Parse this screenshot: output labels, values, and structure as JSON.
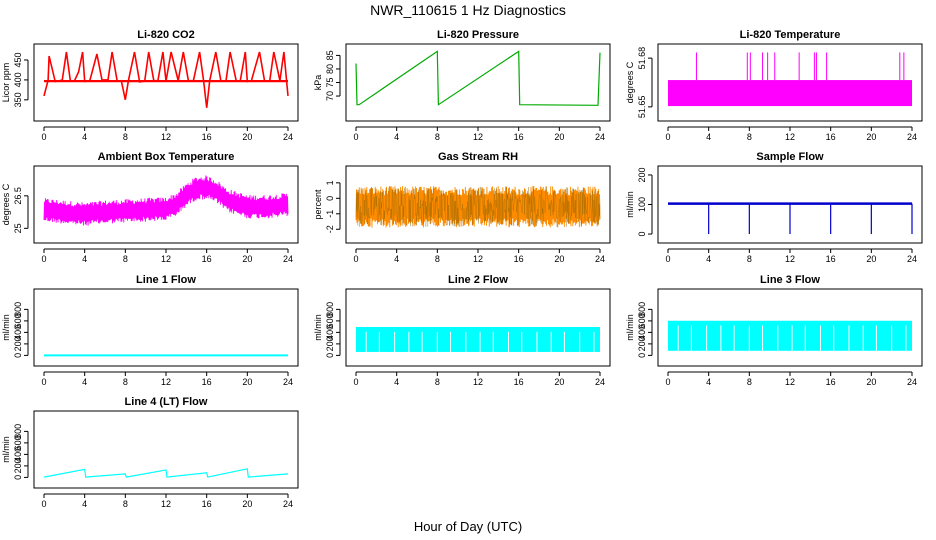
{
  "title": "NWR_110615  1 Hz Diagnostics",
  "xlabel": "Hour of Day (UTC)",
  "chart_data": [
    {
      "type": "line",
      "title": "Li-820 CO2",
      "ylabel": "Licor ppm",
      "color": "#ff0000",
      "xlim": [
        0,
        24
      ],
      "xticks": [
        0,
        4,
        8,
        12,
        16,
        20,
        24
      ],
      "ylim": [
        312,
        475
      ],
      "yticks": [
        350,
        400,
        450
      ],
      "pattern": "co2",
      "baseline": 397,
      "x": [
        0,
        0.4,
        0.5,
        1.1,
        1.4,
        1.8,
        2.2,
        2.6,
        3.0,
        3.4,
        3.8,
        4.0,
        4.5,
        5.2,
        5.7,
        6.3,
        6.7,
        7.2,
        7.6,
        8.0,
        8.3,
        8.9,
        9.4,
        9.9,
        10.3,
        10.8,
        11.2,
        11.7,
        12.0,
        12.5,
        13.2,
        13.7,
        14.2,
        14.7,
        15.3,
        15.7,
        16.0,
        16.3,
        16.9,
        17.4,
        17.9,
        18.3,
        18.9,
        19.3,
        19.8,
        20.0,
        20.4,
        21.2,
        21.7,
        22.2,
        22.6,
        23.2,
        23.6,
        24.0
      ],
      "y": [
        360,
        399,
        460,
        396,
        397,
        400,
        470,
        397,
        398,
        420,
        470,
        396,
        398,
        465,
        400,
        400,
        470,
        397,
        398,
        350,
        398,
        470,
        395,
        397,
        470,
        398,
        398,
        470,
        397,
        470,
        398,
        470,
        398,
        398,
        470,
        398,
        330,
        398,
        470,
        397,
        398,
        470,
        398,
        397,
        470,
        396,
        398,
        470,
        397,
        397,
        470,
        398,
        470,
        360
      ]
    },
    {
      "type": "line",
      "title": "Li-820 Pressure",
      "ylabel": "kPa",
      "color": "#00aa00",
      "xlim": [
        0,
        24
      ],
      "xticks": [
        0,
        4,
        8,
        12,
        16,
        20,
        24
      ],
      "ylim": [
        63,
        87
      ],
      "yticks": [
        70,
        75,
        80,
        85
      ],
      "pattern": "spikes",
      "baseline": 66.8,
      "x": [
        0,
        0.1,
        0.3,
        8.0,
        8.1,
        16.0,
        16.1,
        23.8,
        24.0
      ],
      "y": [
        82,
        66.8,
        66.8,
        86.5,
        66.8,
        86.5,
        66.8,
        66.6,
        86
      ]
    },
    {
      "type": "line",
      "title": "Li-820 Temperature",
      "ylabel": "degrees C",
      "color": "#ff00ff",
      "xlim": [
        0,
        24
      ],
      "xticks": [
        0,
        4,
        8,
        12,
        16,
        20,
        24
      ],
      "ylim": [
        51.645,
        51.685
      ],
      "yticks": [
        51.65,
        51.68
      ],
      "pattern": "band",
      "band": [
        51.6505,
        51.6665
      ],
      "spikes_x": [
        2.8,
        7.8,
        8.1,
        9.3,
        9.8,
        10.5,
        12.9,
        14.4,
        14.6,
        15.6,
        22.8,
        23.2
      ],
      "spikes_top": 51.6835
    },
    {
      "type": "line",
      "title": "Ambient Box Temperature",
      "ylabel": "degrees C",
      "color": "#ff00ff",
      "xlim": [
        0,
        24
      ],
      "xticks": [
        0,
        4,
        8,
        12,
        16,
        20,
        24
      ],
      "ylim": [
        24.6,
        27.6
      ],
      "yticks": [
        25.0,
        26.5
      ],
      "pattern": "noisy",
      "x": [
        0,
        2,
        4,
        6,
        8,
        10,
        12,
        13,
        14,
        15,
        16,
        17,
        18,
        20,
        22,
        24
      ],
      "center": [
        25.85,
        25.75,
        25.65,
        25.75,
        25.8,
        25.85,
        25.9,
        26.1,
        26.55,
        26.85,
        26.9,
        26.7,
        26.3,
        26.0,
        26.0,
        26.1
      ],
      "amplitude": 0.55
    },
    {
      "type": "line",
      "title": "Gas Stream RH",
      "ylabel": "percent",
      "color": "#ff8c00",
      "xlim": [
        0,
        24
      ],
      "xticks": [
        0,
        4,
        8,
        12,
        16,
        20,
        24
      ],
      "ylim": [
        -2.5,
        1.7
      ],
      "yticks": [
        -2,
        -1,
        0,
        1
      ],
      "pattern": "noisy",
      "x": [
        0,
        24
      ],
      "center": [
        -0.55,
        -0.55
      ],
      "amplitude": 1.35
    },
    {
      "type": "line",
      "title": "Sample Flow",
      "ylabel": "ml/min",
      "color": "#0000cc",
      "xlim": [
        0,
        24
      ],
      "xticks": [
        0,
        4,
        8,
        12,
        16,
        20,
        24
      ],
      "ylim": [
        -10,
        210
      ],
      "yticks": [
        0,
        100,
        200
      ],
      "pattern": "dips",
      "baseline": 103,
      "dips_x": [
        4,
        8,
        12,
        16,
        20,
        24
      ],
      "dip_bottom": 0
    },
    {
      "type": "line",
      "title": "Line 1 Flow",
      "ylabel": "ml/min",
      "color": "#00ffff",
      "xlim": [
        0,
        24
      ],
      "xticks": [
        0,
        4,
        8,
        12,
        16,
        20,
        24
      ],
      "ylim": [
        -80,
        1050
      ],
      "yticks": [
        0,
        200,
        400,
        600,
        800
      ],
      "pattern": "flat",
      "baseline": 0
    },
    {
      "type": "line",
      "title": "Line 2 Flow",
      "ylabel": "ml/min",
      "color": "#00ffff",
      "xlim": [
        0,
        24
      ],
      "xticks": [
        0,
        4,
        8,
        12,
        16,
        20,
        24
      ],
      "ylim": [
        -80,
        1050
      ],
      "yticks": [
        0,
        200,
        400,
        600,
        800
      ],
      "pattern": "blocky",
      "band": [
        60,
        480
      ],
      "gaps_x": [
        1.0,
        2.3,
        3.8,
        5.2,
        6.5,
        8.0,
        9.3,
        10.8,
        12.2,
        13.5,
        15.0,
        16.3,
        17.8,
        19.2,
        20.5,
        22.0,
        23.4
      ]
    },
    {
      "type": "line",
      "title": "Line 3 Flow",
      "ylabel": "ml/min",
      "color": "#00ffff",
      "xlim": [
        0,
        24
      ],
      "xticks": [
        0,
        4,
        8,
        12,
        16,
        20,
        24
      ],
      "ylim": [
        -80,
        1050
      ],
      "yticks": [
        0,
        200,
        400,
        600,
        800
      ],
      "pattern": "blocky",
      "band": [
        80,
        590
      ],
      "gaps_x": [
        1.0,
        2.3,
        3.8,
        5.2,
        6.5,
        8.0,
        9.3,
        10.8,
        12.2,
        13.5,
        15.0,
        16.3,
        17.8,
        19.2,
        20.5,
        22.0,
        23.4
      ]
    },
    {
      "type": "line",
      "title": "Line 4 (LT) Flow",
      "ylabel": "ml/min",
      "color": "#00ffff",
      "xlim": [
        0,
        24
      ],
      "xticks": [
        0,
        4,
        8,
        12,
        16,
        20,
        24
      ],
      "ylim": [
        -80,
        1050
      ],
      "yticks": [
        0,
        200,
        400,
        600,
        800
      ],
      "pattern": "spikes",
      "baseline": 5,
      "x": [
        0,
        4.0,
        4.1,
        8.0,
        8.1,
        12.0,
        12.1,
        16.0,
        16.1,
        20.0,
        20.1,
        24.0
      ],
      "y": [
        5,
        140,
        5,
        60,
        5,
        130,
        5,
        80,
        5,
        150,
        5,
        60
      ]
    }
  ]
}
